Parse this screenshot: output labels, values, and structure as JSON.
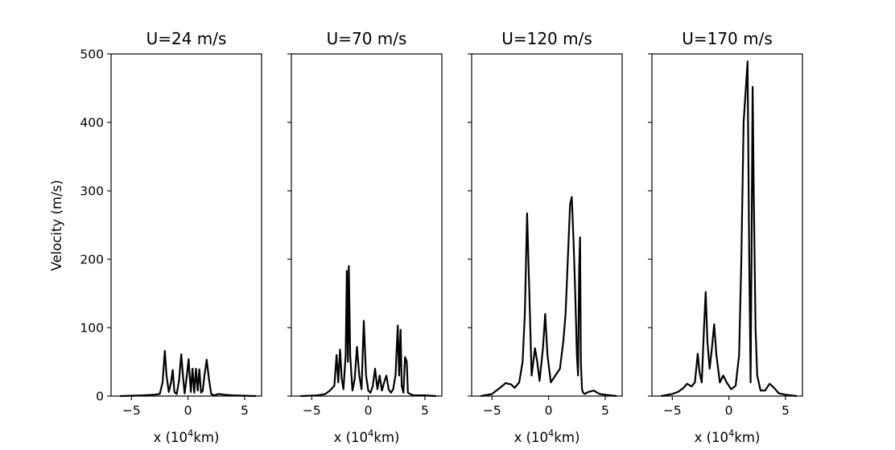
{
  "chart_data": [
    {
      "type": "line",
      "title": "U=24 m/s",
      "xlabel": "x (10",
      "xlabel_sup": "4",
      "xlabel_suffix": "km)",
      "ylabel": "Velocity (m/s)",
      "xlim": [
        -6.8,
        6.5
      ],
      "ylim": [
        0,
        500
      ],
      "xticks": [
        -5,
        0,
        5
      ],
      "yticks": [
        0,
        100,
        200,
        300,
        400,
        500
      ],
      "show_yticklabels": true,
      "x": [
        -6.0,
        -4.0,
        -3.0,
        -2.5,
        -2.25,
        -2.05,
        -1.9,
        -1.7,
        -1.5,
        -1.35,
        -1.2,
        -1.0,
        -0.8,
        -0.6,
        -0.45,
        -0.3,
        -0.1,
        0.05,
        0.25,
        0.4,
        0.55,
        0.7,
        0.85,
        1.0,
        1.15,
        1.3,
        1.45,
        1.65,
        1.85,
        2.05,
        2.3,
        2.7,
        3.2,
        4.0,
        6.0
      ],
      "y": [
        0,
        1,
        2,
        3,
        20,
        66,
        30,
        6,
        20,
        38,
        6,
        3,
        22,
        61,
        30,
        4,
        30,
        54,
        6,
        40,
        5,
        40,
        8,
        39,
        5,
        8,
        30,
        53,
        25,
        3,
        1,
        3,
        2,
        1,
        0
      ]
    },
    {
      "type": "line",
      "title": "U=70 m/s",
      "xlabel": "x (10",
      "xlabel_sup": "4",
      "xlabel_suffix": "km)",
      "ylabel": "",
      "xlim": [
        -6.8,
        6.5
      ],
      "ylim": [
        0,
        500
      ],
      "xticks": [
        -5,
        0,
        5
      ],
      "yticks": [
        0,
        100,
        200,
        300,
        400,
        500
      ],
      "show_yticklabels": false,
      "x": [
        -6.0,
        -4.5,
        -3.8,
        -3.4,
        -3.0,
        -2.8,
        -2.65,
        -2.5,
        -2.35,
        -2.2,
        -2.0,
        -1.9,
        -1.8,
        -1.72,
        -1.6,
        -1.4,
        -1.2,
        -1.0,
        -0.8,
        -0.6,
        -0.4,
        -0.2,
        0.0,
        0.2,
        0.4,
        0.6,
        0.8,
        1.0,
        1.2,
        1.4,
        1.6,
        1.8,
        2.0,
        2.2,
        2.4,
        2.6,
        2.72,
        2.85,
        2.95,
        3.1,
        3.25,
        3.4,
        3.5,
        3.7,
        4.0,
        5.0,
        6.0
      ],
      "y": [
        0,
        1,
        3,
        8,
        15,
        60,
        20,
        68,
        25,
        10,
        60,
        183,
        50,
        190,
        60,
        8,
        25,
        72,
        30,
        10,
        110,
        30,
        8,
        5,
        15,
        40,
        10,
        30,
        8,
        20,
        30,
        10,
        5,
        10,
        30,
        103,
        30,
        97,
        15,
        5,
        57,
        50,
        5,
        3,
        1,
        1,
        0
      ]
    },
    {
      "type": "line",
      "title": "U=120 m/s",
      "xlabel": "x (10",
      "xlabel_sup": "4",
      "xlabel_suffix": "km)",
      "ylabel": "",
      "xlim": [
        -6.8,
        6.5
      ],
      "ylim": [
        0,
        500
      ],
      "xticks": [
        -5,
        0,
        5
      ],
      "yticks": [
        0,
        100,
        200,
        300,
        400,
        500
      ],
      "show_yticklabels": false,
      "x": [
        -6.0,
        -5.0,
        -4.3,
        -3.8,
        -3.3,
        -3.0,
        -2.6,
        -2.3,
        -2.1,
        -1.9,
        -1.7,
        -1.5,
        -1.2,
        -1.0,
        -0.8,
        -0.5,
        -0.3,
        -0.1,
        0.2,
        0.6,
        1.0,
        1.3,
        1.5,
        1.7,
        1.9,
        2.05,
        2.2,
        2.35,
        2.5,
        2.6,
        2.7,
        2.78,
        2.85,
        2.95,
        3.05,
        3.2,
        3.5,
        4.0,
        4.5,
        5.0,
        6.0
      ],
      "y": [
        0,
        3,
        12,
        19,
        17,
        12,
        20,
        50,
        120,
        267,
        150,
        30,
        70,
        50,
        22,
        70,
        120,
        60,
        20,
        30,
        40,
        80,
        120,
        200,
        280,
        291,
        230,
        150,
        60,
        30,
        185,
        232,
        50,
        10,
        5,
        3,
        6,
        8,
        3,
        2,
        0
      ]
    },
    {
      "type": "line",
      "title": "U=170 m/s",
      "xlabel": "x (10",
      "xlabel_sup": "4",
      "xlabel_suffix": "km)",
      "ylabel": "",
      "xlim": [
        -6.8,
        6.5
      ],
      "ylim": [
        0,
        500
      ],
      "xticks": [
        -5,
        0,
        5
      ],
      "yticks": [
        0,
        100,
        200,
        300,
        400,
        500
      ],
      "show_yticklabels": false,
      "x": [
        -6.0,
        -5.0,
        -4.5,
        -4.0,
        -3.7,
        -3.3,
        -3.0,
        -2.75,
        -2.6,
        -2.4,
        -2.2,
        -2.05,
        -1.9,
        -1.7,
        -1.5,
        -1.3,
        -1.1,
        -0.8,
        -0.5,
        -0.2,
        0.2,
        0.6,
        0.9,
        1.1,
        1.3,
        1.5,
        1.65,
        1.8,
        1.92,
        2.0,
        2.1,
        2.2,
        2.35,
        2.5,
        2.8,
        3.2,
        3.6,
        4.0,
        4.4,
        5.0,
        6.0
      ],
      "y": [
        0,
        3,
        6,
        12,
        18,
        14,
        20,
        62,
        35,
        20,
        100,
        152,
        80,
        40,
        70,
        105,
        60,
        20,
        30,
        20,
        10,
        15,
        60,
        200,
        400,
        450,
        489,
        200,
        20,
        200,
        452,
        300,
        100,
        30,
        8,
        8,
        18,
        12,
        4,
        2,
        0
      ]
    }
  ]
}
